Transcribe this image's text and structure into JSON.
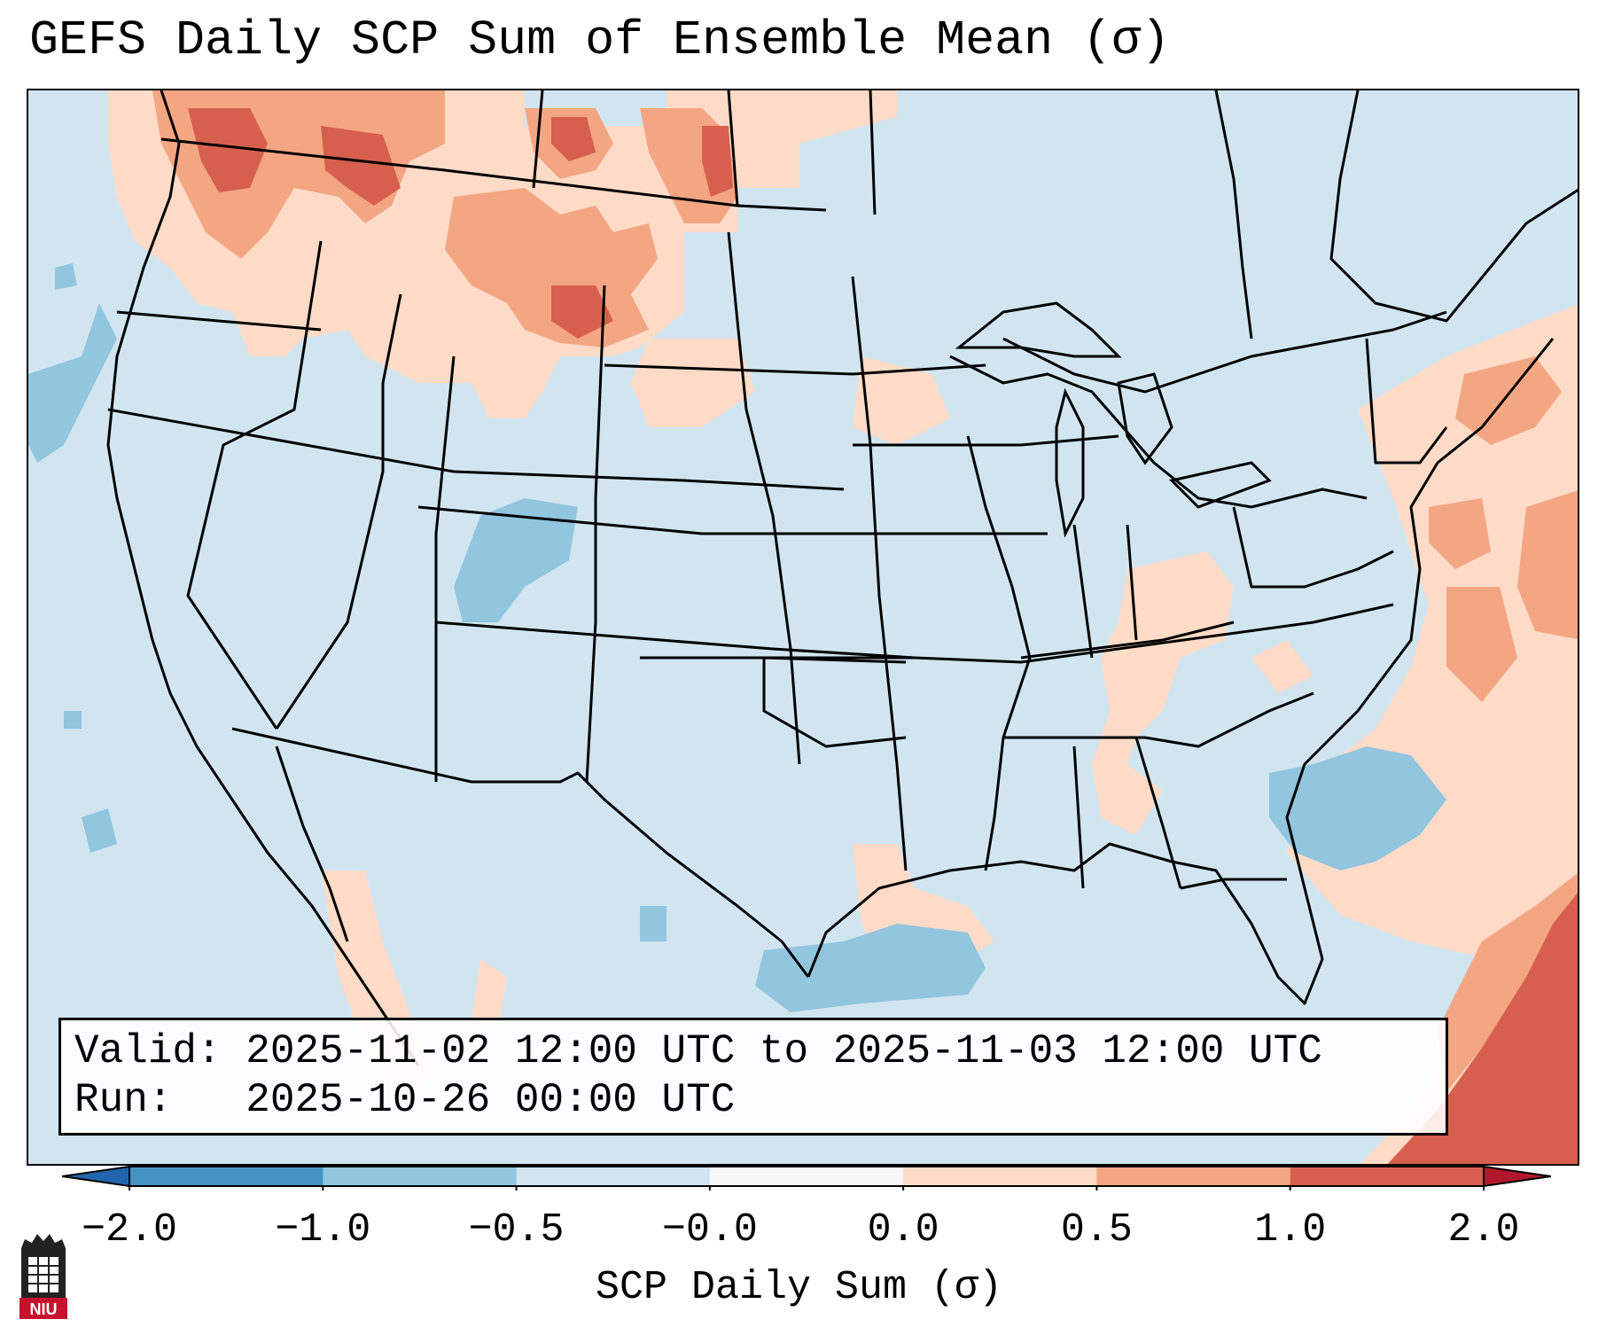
{
  "title": "GEFS Daily SCP Sum of Ensemble Mean (σ)",
  "info": {
    "valid_prefix": "Valid: ",
    "valid": "2025-11-02 12:00 UTC to 2025-11-03 12:00 UTC",
    "run_prefix": "Run:   ",
    "run": "2025-10-26 00:00 UTC"
  },
  "colorbar": {
    "label": "SCP Daily Sum (σ)",
    "ticks": [
      "−2.0",
      "−1.0",
      "−0.5",
      "−0.0",
      "0.0",
      "0.5",
      "1.0",
      "2.0"
    ],
    "colors": [
      "#4393c3",
      "#92c5de",
      "#d1e5f0",
      "#f7f7f7",
      "#fddbc7",
      "#f4a582",
      "#d6604d"
    ],
    "extend_low_color": "#2166ac",
    "extend_high_color": "#b2182b"
  },
  "logo": {
    "text": "NIU",
    "color": "#c8102e"
  }
}
